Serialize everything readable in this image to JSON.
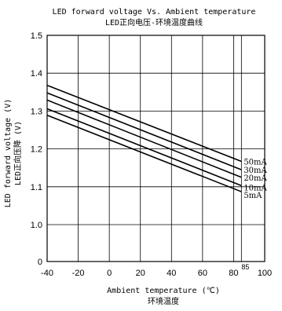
{
  "chart_data": {
    "type": "line",
    "title": "LED forward voltage Vs. Ambient temperature",
    "subtitle": "LED正向电压-环境温度曲线",
    "xlabel": "Ambient temperature (℃)",
    "xlabel_cn": "环境温度",
    "ylabel": "LED forward voltage (V)",
    "ylabel_cn": "LED正向压降 (V)",
    "xlim": [
      -40,
      100
    ],
    "ylim": [
      0,
      1.5
    ],
    "y_axis_break": [
      0,
      1.0
    ],
    "x_ticks": [
      "-40",
      "-20",
      "0",
      "20",
      "40",
      "60",
      "80",
      "100"
    ],
    "x_tick_values": [
      -40,
      -20,
      0,
      20,
      40,
      60,
      80,
      100
    ],
    "extra_x_tick": {
      "value": 85,
      "label": "85"
    },
    "y_ticks": [
      "0",
      "1.0",
      "1.1",
      "1.2",
      "1.3",
      "1.4",
      "1.5"
    ],
    "y_tick_values": [
      0,
      1.0,
      1.1,
      1.2,
      1.3,
      1.4,
      1.5
    ],
    "grid": true,
    "series": [
      {
        "name": "50mA",
        "x": [
          -40,
          85
        ],
        "y": [
          1.368,
          1.167
        ]
      },
      {
        "name": "30mA",
        "x": [
          -40,
          85
        ],
        "y": [
          1.348,
          1.145
        ]
      },
      {
        "name": "20mA",
        "x": [
          -40,
          85
        ],
        "y": [
          1.329,
          1.125
        ]
      },
      {
        "name": "10mA",
        "x": [
          -40,
          85
        ],
        "y": [
          1.306,
          1.103
        ]
      },
      {
        "name": "5mA",
        "x": [
          -40,
          85
        ],
        "y": [
          1.289,
          1.087
        ]
      }
    ]
  }
}
